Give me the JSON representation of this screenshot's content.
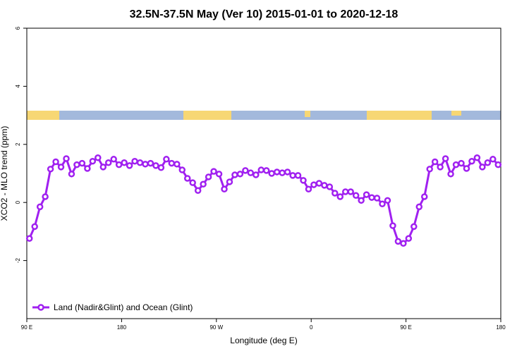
{
  "chart_data": {
    "type": "line",
    "title": "32.5N-37.5N May (Ver 10)   2015-01-01 to 2020-12-18",
    "x_label": "Longitude (deg E)",
    "y_label": "XCO2 - MLO trend (ppm)",
    "x": [
      92.5,
      97.5,
      102.5,
      107.5,
      112.5,
      117.5,
      122.5,
      127.5,
      132.5,
      137.5,
      142.5,
      147.5,
      152.5,
      157.5,
      162.5,
      167.5,
      172.5,
      177.5,
      182.5,
      187.5,
      192.5,
      197.5,
      202.5,
      207.5,
      212.5,
      217.5,
      222.5,
      227.5,
      232.5,
      237.5,
      242.5,
      247.5,
      252.5,
      257.5,
      262.5,
      267.5,
      272.5,
      277.5,
      282.5,
      287.5,
      292.5,
      297.5,
      302.5,
      307.5,
      312.5,
      317.5,
      322.5,
      327.5,
      332.5,
      337.5,
      342.5,
      347.5,
      352.5,
      357.5,
      362.5,
      367.5,
      372.5,
      377.5,
      382.5,
      387.5,
      392.5,
      397.5,
      402.5,
      407.5,
      412.5,
      417.5,
      422.5,
      427.5,
      432.5,
      437.5,
      442.5,
      447.5,
      452.5,
      457.5,
      462.5,
      467.5,
      472.5,
      477.5,
      482.5,
      487.5,
      492.5,
      497.5,
      502.5,
      507.5,
      512.5,
      517.5,
      522.5,
      527.5,
      532.5,
      537.5
    ],
    "series": [
      {
        "name": "Land (Nadir&Glint) and Ocean (Glint)",
        "color": "#a020f0",
        "values": [
          -1.24,
          -0.83,
          -0.15,
          0.2,
          1.15,
          1.4,
          1.22,
          1.51,
          0.98,
          1.3,
          1.35,
          1.17,
          1.42,
          1.54,
          1.22,
          1.37,
          1.49,
          1.3,
          1.37,
          1.27,
          1.42,
          1.37,
          1.32,
          1.35,
          1.27,
          1.2,
          1.49,
          1.35,
          1.32,
          1.12,
          0.83,
          0.68,
          0.41,
          0.63,
          0.88,
          1.07,
          0.98,
          0.46,
          0.71,
          0.95,
          0.98,
          1.1,
          1.02,
          0.95,
          1.12,
          1.1,
          1.0,
          1.05,
          1.02,
          1.05,
          0.93,
          0.93,
          0.76,
          0.46,
          0.61,
          0.66,
          0.59,
          0.54,
          0.32,
          0.2,
          0.37,
          0.37,
          0.24,
          0.07,
          0.27,
          0.17,
          0.15,
          -0.05,
          0.07,
          -0.8,
          -1.34,
          -1.41,
          -1.24,
          -0.83,
          -0.15,
          0.2,
          1.15,
          1.4,
          1.22,
          1.51,
          0.98,
          1.3,
          1.35,
          1.17,
          1.42,
          1.54,
          1.22,
          1.37,
          1.49,
          1.3
        ]
      }
    ],
    "xlim": [
      90,
      540
    ],
    "xticks": [
      {
        "value": 90,
        "label": "90 E"
      },
      180,
      {
        "value": 270,
        "label": "90 W"
      },
      {
        "value": 360,
        "label": "0"
      },
      {
        "value": 450,
        "label": "90 E"
      },
      {
        "value": 540,
        "label": "180"
      }
    ],
    "ylim": [
      -4,
      6
    ],
    "yticks": [
      6,
      4,
      2,
      0,
      -2
    ],
    "legend": "bottom-left"
  }
}
